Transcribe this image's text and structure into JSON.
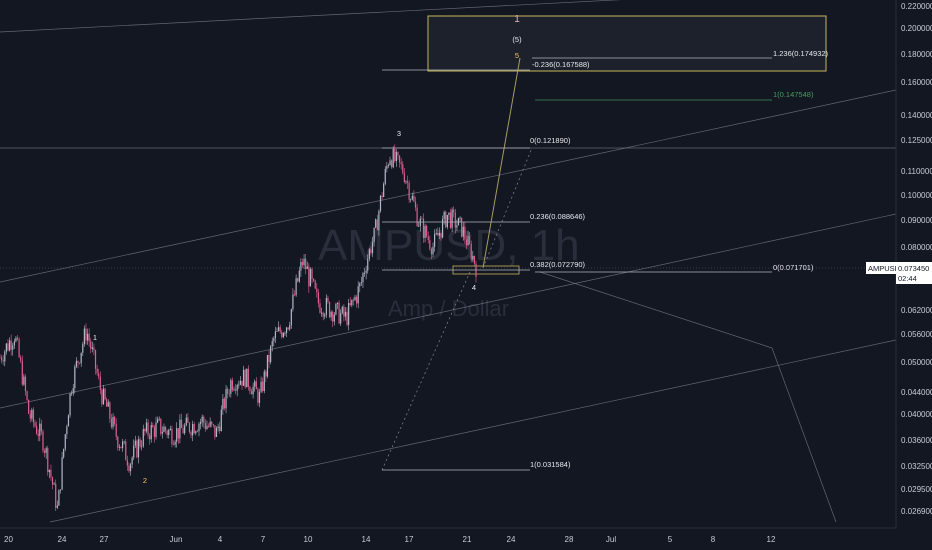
{
  "symbol": {
    "name": "AMPUSD",
    "price": "0.073450",
    "countdown": "02:44"
  },
  "watermark": {
    "line1": "AMPUSD, 1h",
    "line2": "Amp / Dollar"
  },
  "chart_data": {
    "type": "candlestick",
    "title": "",
    "y_axis_ticks": [
      0.22,
      0.2,
      0.18,
      0.16,
      0.14,
      0.125,
      0.11,
      0.1,
      0.09,
      0.08,
      0.0725,
      0.062,
      0.056,
      0.05,
      0.044,
      0.04,
      0.036,
      0.0325,
      0.0295,
      0.0269
    ],
    "y_axis_labels": [
      "0.220000",
      "0.200000",
      "0.180000",
      "0.160000",
      "0.140000",
      "0.125000",
      "0.110000",
      "0.100000",
      "0.090000",
      "0.080000",
      "0.072500",
      "0.062000",
      "0.056000",
      "0.050000",
      "0.044000",
      "0.040000",
      "0.036000",
      "0.032500",
      "0.029500",
      "0.026900"
    ],
    "x_axis_labels": [
      "20",
      "24",
      "27",
      "Jun",
      "4",
      "7",
      "10",
      "14",
      "17",
      "21",
      "24",
      "28",
      "Jul",
      "5",
      "8",
      "12"
    ],
    "price_path_anchors": [
      {
        "label": "20",
        "price": 0.051
      },
      {
        "label": "21",
        "price": 0.056
      },
      {
        "label": "22",
        "price": 0.04
      },
      {
        "label": "23",
        "price": 0.036
      },
      {
        "label": "24",
        "price": 0.0269
      },
      {
        "label": "25",
        "price": 0.046
      },
      {
        "label": "26",
        "price": 0.057
      },
      {
        "label": "27",
        "price": 0.044
      },
      {
        "label": "28",
        "price": 0.037
      },
      {
        "label": "29",
        "price": 0.033
      },
      {
        "label": "30",
        "price": 0.037
      },
      {
        "label": "31",
        "price": 0.038
      },
      {
        "label": "Jun",
        "price": 0.037
      },
      {
        "label": "2",
        "price": 0.038
      },
      {
        "label": "3",
        "price": 0.039
      },
      {
        "label": "4",
        "price": 0.037
      },
      {
        "label": "5",
        "price": 0.046
      },
      {
        "label": "6",
        "price": 0.047
      },
      {
        "label": "7",
        "price": 0.043
      },
      {
        "label": "8",
        "price": 0.055
      },
      {
        "label": "9",
        "price": 0.059
      },
      {
        "label": "10",
        "price": 0.075
      },
      {
        "label": "11",
        "price": 0.064
      },
      {
        "label": "12",
        "price": 0.062
      },
      {
        "label": "13",
        "price": 0.06
      },
      {
        "label": "14",
        "price": 0.068
      },
      {
        "label": "15",
        "price": 0.085
      },
      {
        "label": "16",
        "price": 0.118
      },
      {
        "label": "17",
        "price": 0.11
      },
      {
        "label": "18",
        "price": 0.09
      },
      {
        "label": "19",
        "price": 0.08
      },
      {
        "label": "20",
        "price": 0.092
      },
      {
        "label": "21",
        "price": 0.087
      },
      {
        "label": "22",
        "price": 0.0735
      }
    ],
    "fib_levels": [
      {
        "text": "-0.236(0.167588)"
      },
      {
        "text": "0(0.121890)"
      },
      {
        "text": "0.236(0.088646)"
      },
      {
        "text": "0.382(0.072790)"
      },
      {
        "text": "1(0.031584)"
      },
      {
        "text": "1.236(0.174932)"
      },
      {
        "text": "1(0.147548)"
      },
      {
        "text": "0(0.071701)"
      }
    ],
    "wave_labels": [
      {
        "text": "1"
      },
      {
        "text": "2"
      },
      {
        "text": "3"
      },
      {
        "text": "4"
      },
      {
        "text": "5"
      },
      {
        "text": "(5)"
      },
      {
        "text": "1"
      }
    ]
  }
}
